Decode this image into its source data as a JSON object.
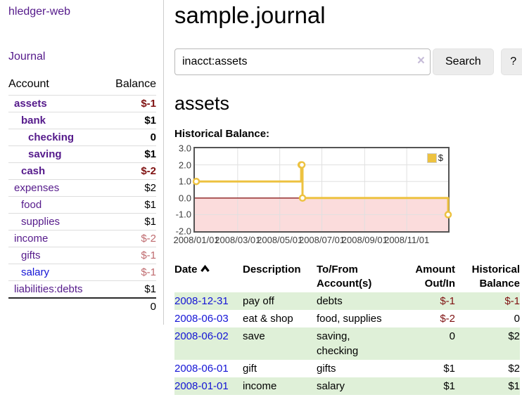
{
  "sidebar": {
    "brand": "hledger-web",
    "journal_label": "Journal",
    "table": {
      "headers": [
        "Account",
        "Balance"
      ],
      "rows": [
        {
          "account": "assets",
          "balance": "$-1",
          "depth": 1,
          "bold": true,
          "blue": false
        },
        {
          "account": "bank",
          "balance": "$1",
          "depth": 2,
          "bold": true,
          "blue": false
        },
        {
          "account": "checking",
          "balance": "0",
          "depth": 3,
          "bold": true,
          "blue": false
        },
        {
          "account": "saving",
          "balance": "$1",
          "depth": 3,
          "bold": true,
          "blue": false
        },
        {
          "account": "cash",
          "balance": "$-2",
          "depth": 2,
          "bold": true,
          "blue": false
        },
        {
          "account": "expenses",
          "balance": "$2",
          "depth": 1,
          "bold": false,
          "blue": false
        },
        {
          "account": "food",
          "balance": "$1",
          "depth": 2,
          "bold": false,
          "blue": false
        },
        {
          "account": "supplies",
          "balance": "$1",
          "depth": 2,
          "bold": false,
          "blue": false
        },
        {
          "account": "income",
          "balance": "$-2",
          "depth": 1,
          "bold": false,
          "blue": false
        },
        {
          "account": "gifts",
          "balance": "$-1",
          "depth": 2,
          "bold": false,
          "blue": false
        },
        {
          "account": "salary",
          "balance": "$-1",
          "depth": 2,
          "bold": false,
          "blue": true
        },
        {
          "account": "liabilities:debts",
          "balance": "$1",
          "depth": 1,
          "bold": false,
          "blue": false
        }
      ],
      "total": "0"
    }
  },
  "header": {
    "title": "sample.journal"
  },
  "search": {
    "value": "inacct:assets",
    "clear_icon": "×",
    "button_label": "Search",
    "help_label": "?"
  },
  "account_page": {
    "heading": "assets",
    "chart_label": "Historical Balance:"
  },
  "chart_data": {
    "type": "line",
    "step": true,
    "title": "Historical Balance",
    "series": [
      {
        "name": "$",
        "color": "#edc240",
        "points": [
          [
            "2008-01-01",
            1
          ],
          [
            "2008-06-01",
            2
          ],
          [
            "2008-06-02",
            2
          ],
          [
            "2008-06-03",
            0
          ],
          [
            "2008-12-31",
            -1
          ]
        ]
      }
    ],
    "x_range": [
      "2008-01-01",
      "2008-12-31"
    ],
    "ylim": [
      -2,
      3
    ],
    "y_ticks": [
      "3.0",
      "2.0",
      "1.0",
      "0.0",
      "-1.0",
      "-2.0"
    ],
    "x_ticks": [
      "2008/01/01",
      "2008/03/01",
      "2008/05/01",
      "2008/07/01",
      "2008/09/01",
      "2008/11/01"
    ],
    "legend": {
      "label": "$",
      "swatch_color": "#edc240",
      "position": "top-right"
    },
    "grid": true,
    "grid_color": "#e0e0e0",
    "border_color": "#545454",
    "negative_region_color": "#fbdcdc",
    "zero_line_color": "#8b1c1c"
  },
  "register": {
    "headers": {
      "date": "Date",
      "sort_icon": "chevron-up-icon",
      "description": "Description",
      "accounts": "To/From Account(s)",
      "amount": "Amount Out/In",
      "balance": "Historical Balance"
    },
    "rows": [
      {
        "date": "2008-12-31",
        "description": "pay off",
        "accounts": "debts",
        "amount": "$-1",
        "balance": "$-1"
      },
      {
        "date": "2008-06-03",
        "description": "eat & shop",
        "accounts": "food, supplies",
        "amount": "$-2",
        "balance": "0"
      },
      {
        "date": "2008-06-02",
        "description": "save",
        "accounts": "saving, checking",
        "amount": "0",
        "balance": "$2"
      },
      {
        "date": "2008-06-01",
        "description": "gift",
        "accounts": "gifts",
        "amount": "$1",
        "balance": "$2"
      },
      {
        "date": "2008-01-01",
        "description": "income",
        "accounts": "salary",
        "amount": "$1",
        "balance": "$1"
      }
    ]
  },
  "colors": {
    "link_purple": "#551a8b",
    "link_blue": "#1414d6",
    "negative_strong": "#7f1111",
    "negative_soft": "#bf6a6e",
    "row_green": "#dff0d8",
    "series_gold": "#edc240"
  }
}
